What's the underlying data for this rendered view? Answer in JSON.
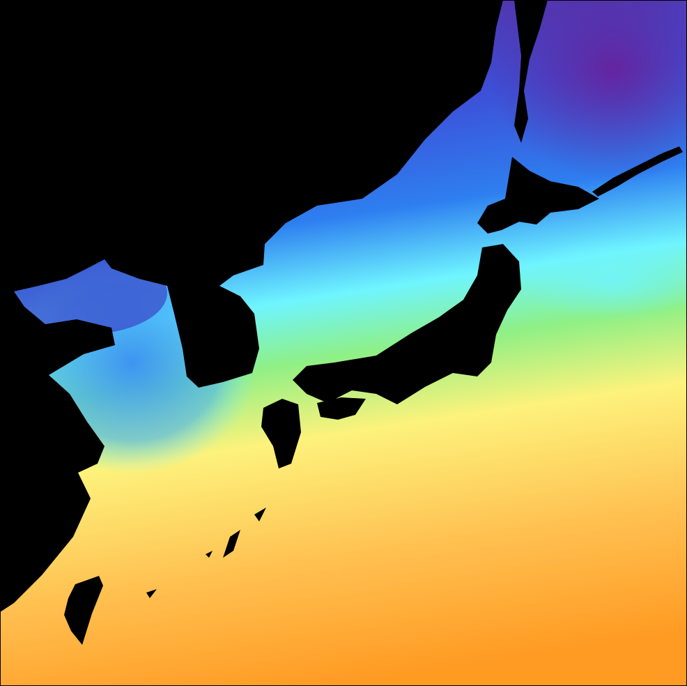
{
  "map": {
    "land_color": "#000000",
    "border_color": "#000000",
    "colormap": [
      "#5b2a9e",
      "#3d4fd6",
      "#2e7ff0",
      "#6ff5ff",
      "#8ff085",
      "#fdf27c",
      "#ffc050",
      "#ff9a22"
    ]
  }
}
